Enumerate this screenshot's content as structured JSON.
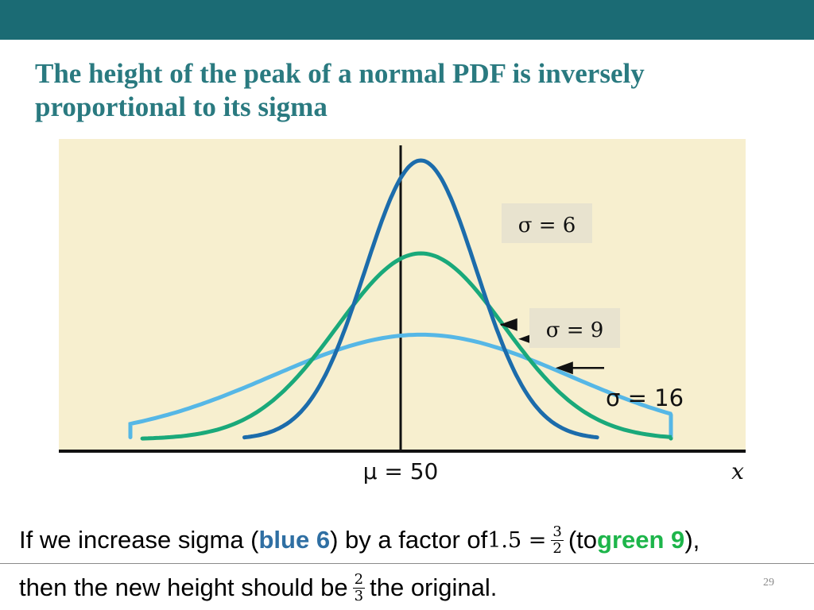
{
  "slide": {
    "title": "The height of the peak of a normal PDF is inversely proportional to its sigma",
    "page_number": "29",
    "colors": {
      "topbar": "#1b6b74",
      "title": "#2a7a80",
      "plot_bg": "#f7efcf"
    }
  },
  "caption": {
    "line1": {
      "t1": "If we increase sigma (",
      "blue": "blue 6",
      "t2": ") by a factor of ",
      "math": "1.5 =",
      "frac_num": "3",
      "frac_den": "2",
      "t3": " (to ",
      "green": "green 9",
      "t4": "),"
    },
    "line2": {
      "t1": "then the new height should be ",
      "frac_num": "2",
      "frac_den": "3",
      "t2": " the original."
    }
  },
  "chart_data": {
    "type": "line",
    "mean": 50,
    "xlim": [
      11,
      85
    ],
    "series": [
      {
        "name": "σ = 6",
        "sigma": 6,
        "color": "#1c6cab",
        "x_range": [
          31,
          69
        ]
      },
      {
        "name": "σ = 9",
        "sigma": 9,
        "color": "#1aa97a",
        "x_range": [
          20,
          80
        ]
      },
      {
        "name": "σ = 16",
        "sigma": 16,
        "color": "#56b7e6",
        "x_range": [
          5,
          96
        ]
      }
    ],
    "labels": {
      "sigma6": "σ = 6",
      "sigma9": "σ = 9",
      "sigma16": "σ = 16",
      "mean": "μ = 50",
      "xlabel": "x"
    },
    "annotation_points": {
      "sigma6_x": 58,
      "sigma9_x": 60,
      "sigma16_x": 64
    }
  }
}
